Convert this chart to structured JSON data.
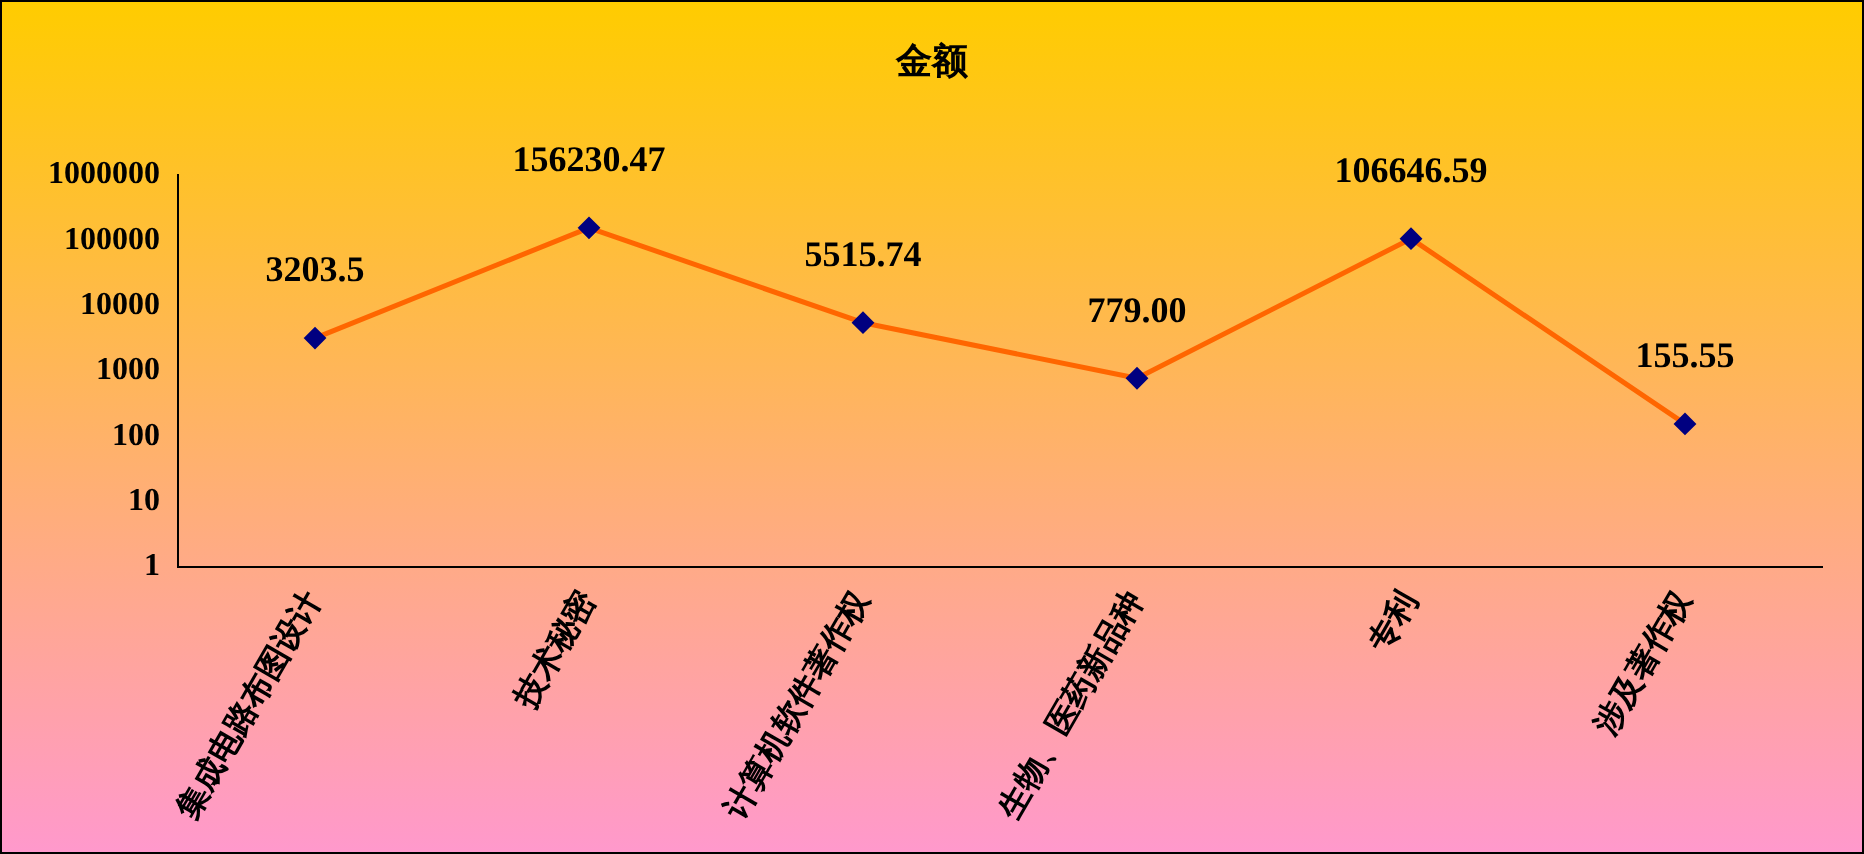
{
  "chart_data": {
    "type": "line",
    "title": "金额",
    "categories": [
      "集成电路布图设计",
      "技术秘密",
      "计算机软件著作权",
      "生物、医药新品种",
      "专利",
      "涉及著作权"
    ],
    "series": [
      {
        "color": "#ff6600",
        "values": [
          3203.5,
          156230.47,
          5515.74,
          779.0,
          106646.59,
          155.55
        ]
      }
    ],
    "value_labels": [
      "3203.5",
      "156230.47",
      "5515.74",
      "779.00",
      "106646.59",
      "155.55"
    ],
    "log": true,
    "ylim": [
      1,
      1000000
    ],
    "yticks": [
      1,
      10,
      100,
      1000,
      10000,
      100000,
      1000000
    ],
    "grid": false,
    "legend": false,
    "marker": "diamond",
    "line_style": "solid"
  }
}
